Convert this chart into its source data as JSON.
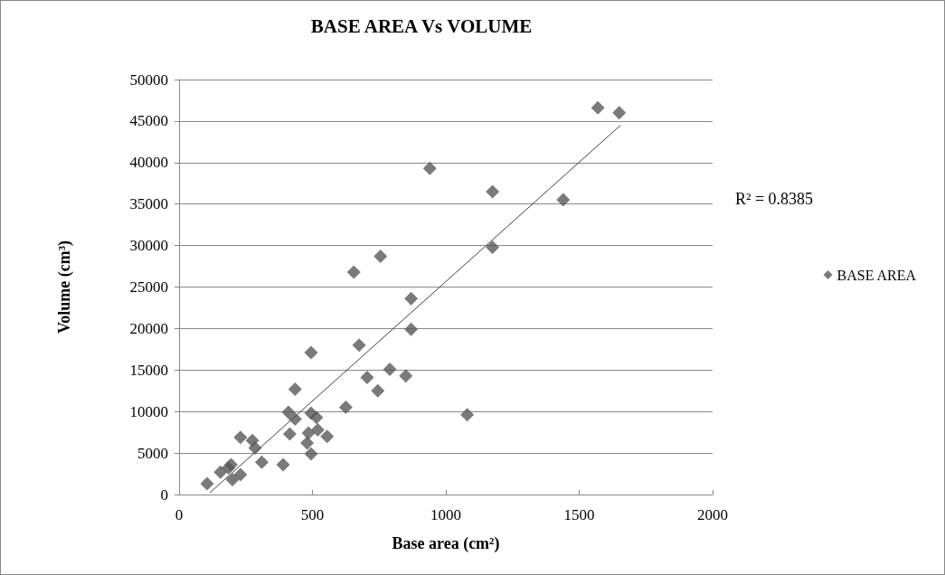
{
  "chart_data": {
    "type": "scatter",
    "title": "BASE AREA Vs VOLUME",
    "xlabel": "Base area (cm²)",
    "ylabel": "Volume (cm³)",
    "annotations": [
      "R² = 0.8385"
    ],
    "series": [
      {
        "name": "BASE AREA",
        "color": "#595959",
        "marker": "diamond",
        "x": [
          1570,
          1650,
          1440,
          940,
          1175,
          1175,
          755,
          655,
          870,
          870,
          495,
          675,
          790,
          850,
          705,
          745,
          435,
          625,
          1080,
          410,
          435,
          495,
          515,
          415,
          485,
          520,
          555,
          480,
          495,
          230,
          275,
          285,
          310,
          390,
          195,
          155,
          185,
          230,
          200,
          105
        ],
        "values": [
          46600,
          46000,
          35500,
          39300,
          36500,
          29800,
          28700,
          26800,
          23600,
          19900,
          17100,
          18000,
          15100,
          14300,
          14100,
          12500,
          12700,
          10500,
          9600,
          9900,
          9100,
          9800,
          9300,
          7300,
          7400,
          7800,
          7000,
          6200,
          4900,
          6900,
          6500,
          5600,
          3900,
          3600,
          3600,
          2700,
          3200,
          2400,
          1800,
          1300
        ]
      },
      {
        "type": "line",
        "color": "#404040",
        "marker": "none",
        "x": [
          115,
          1655
        ],
        "values": [
          200,
          44500
        ]
      }
    ],
    "xlim": [
      0,
      2000
    ],
    "xticks": [
      0,
      500,
      1000,
      1500,
      2000
    ],
    "ylim": [
      0,
      50000
    ],
    "yticks": [
      0,
      5000,
      10000,
      15000,
      20000,
      25000,
      30000,
      35000,
      40000,
      45000,
      50000
    ],
    "grid": "y",
    "legend": "right"
  }
}
